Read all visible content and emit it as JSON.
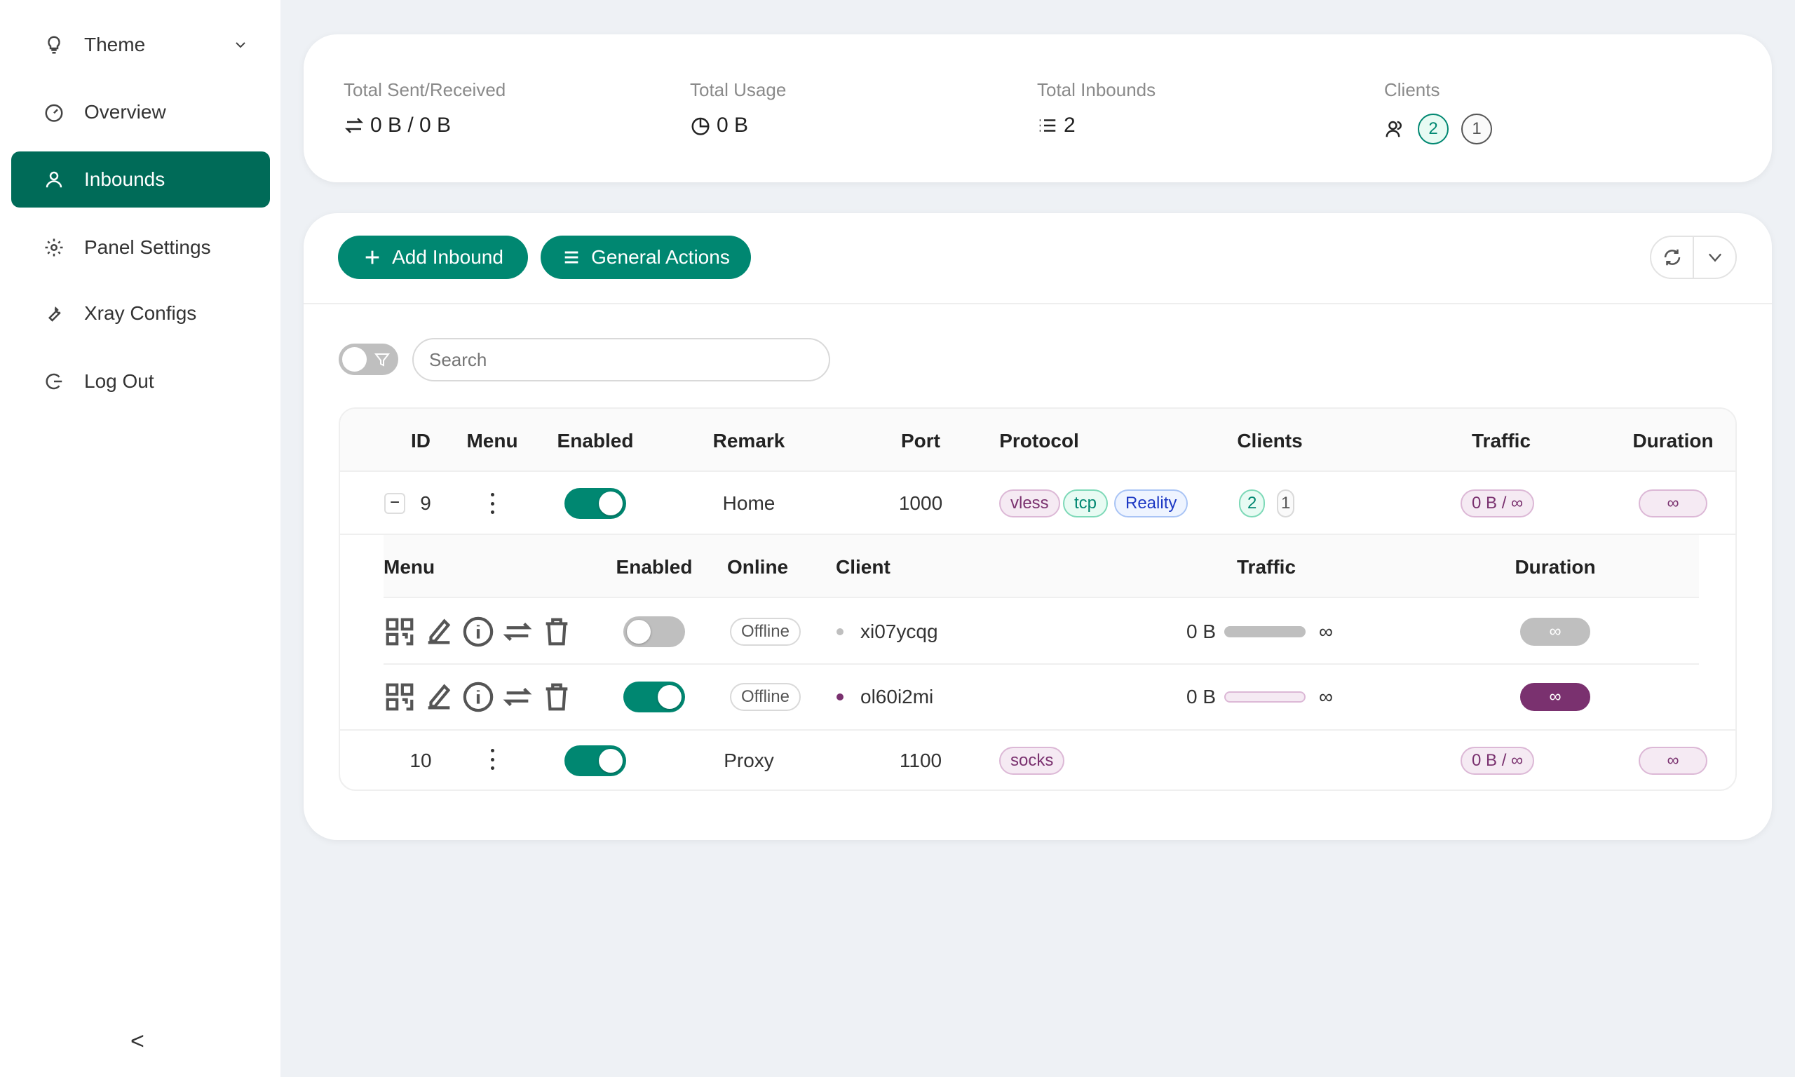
{
  "sidebar": {
    "items": [
      {
        "label": "Theme",
        "icon": "bulb-icon"
      },
      {
        "label": "Overview",
        "icon": "dashboard-icon"
      },
      {
        "label": "Inbounds",
        "icon": "user-icon",
        "active": true
      },
      {
        "label": "Panel Settings",
        "icon": "gear-icon"
      },
      {
        "label": "Xray Configs",
        "icon": "tool-icon"
      },
      {
        "label": "Log Out",
        "icon": "logout-icon"
      }
    ],
    "collapse": "<"
  },
  "stats": {
    "sent_label": "Total Sent/Received",
    "sent_value": "0 B / 0 B",
    "usage_label": "Total Usage",
    "usage_value": "0 B",
    "inbounds_label": "Total Inbounds",
    "inbounds_value": "2",
    "clients_label": "Clients",
    "clients_active": "2",
    "clients_other": "1"
  },
  "toolbar": {
    "add": "Add Inbound",
    "general": "General Actions"
  },
  "search": {
    "placeholder": "Search"
  },
  "table": {
    "headers": [
      "ID",
      "Menu",
      "Enabled",
      "Remark",
      "Port",
      "Protocol",
      "Clients",
      "Traffic",
      "Duration"
    ],
    "rows": [
      {
        "id": "9",
        "remark": "Home",
        "port": "1000",
        "protocols": [
          "vless",
          "tcp",
          "Reality"
        ],
        "clients_active": "2",
        "clients_other": "1",
        "traffic": "0 B / ∞",
        "duration": "∞",
        "enabled": true
      },
      {
        "id": "10",
        "remark": "Proxy",
        "port": "1100",
        "protocols": [
          "socks"
        ],
        "traffic": "0 B / ∞",
        "duration": "∞",
        "enabled": true
      }
    ],
    "sub_headers": [
      "Menu",
      "Enabled",
      "Online",
      "Client",
      "Traffic",
      "Duration"
    ],
    "clients": [
      {
        "name": "xi07ycqg",
        "online": "Offline",
        "traffic": "0 B",
        "limit": "∞",
        "duration": "∞",
        "enabled": false
      },
      {
        "name": "ol60i2mi",
        "online": "Offline",
        "traffic": "0 B",
        "limit": "∞",
        "duration": "∞",
        "enabled": true
      }
    ]
  },
  "colors": {
    "primary": "#008771",
    "active_nav": "#006b58",
    "purple": "#7a316f"
  }
}
